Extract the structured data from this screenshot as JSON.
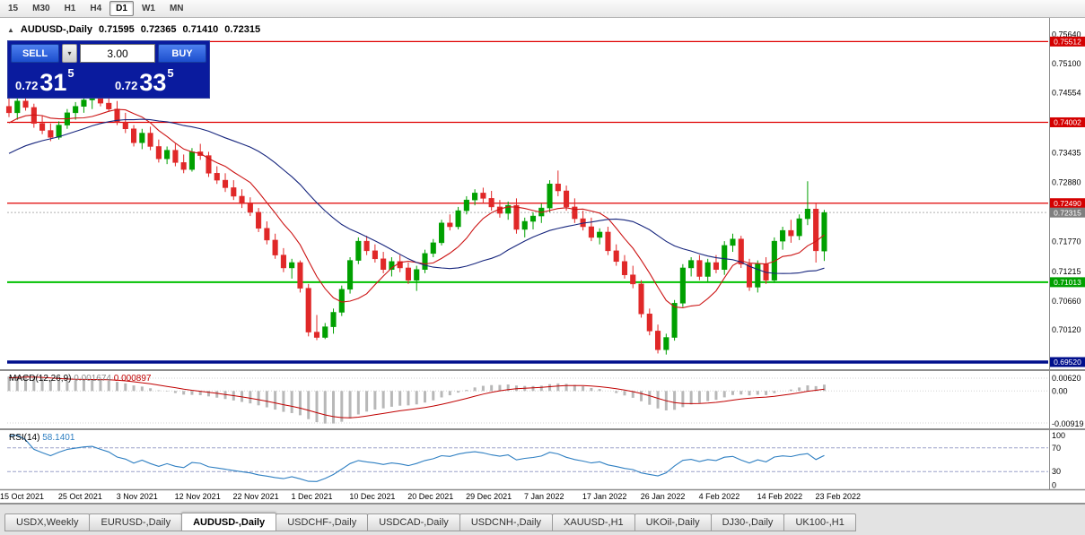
{
  "toolbar": {
    "timeframes": [
      {
        "label": "15",
        "active": false
      },
      {
        "label": "M30",
        "active": false
      },
      {
        "label": "H1",
        "active": false
      },
      {
        "label": "H4",
        "active": false
      },
      {
        "label": "D1",
        "active": true
      },
      {
        "label": "W1",
        "active": false
      },
      {
        "label": "MN",
        "active": false
      }
    ]
  },
  "chart": {
    "header": {
      "collapse_icon": "▲",
      "symbol": "AUDUSD-,Daily",
      "open": "0.71595",
      "high": "0.72365",
      "low": "0.71410",
      "close": "0.72315"
    },
    "trade_panel": {
      "sell_label": "SELL",
      "buy_label": "BUY",
      "lot": "3.00",
      "dropdown_icon": "▾",
      "sell_price": {
        "prefix": "0.72",
        "big": "31",
        "pip": "5"
      },
      "buy_price": {
        "prefix": "0.72",
        "big": "33",
        "pip": "5"
      }
    }
  },
  "chart_data": {
    "type": "candlestick",
    "symbol": "AUDUSD-,Daily",
    "current_bid": "0.72315",
    "price_range": {
      "top": 0.7592,
      "bottom": 0.69386
    },
    "colors": {
      "bull": "#00a000",
      "bear": "#e02828",
      "background": "#ffffff"
    },
    "candles": [
      [
        0.743,
        0.7448,
        0.741,
        0.7418
      ],
      [
        0.7418,
        0.7445,
        0.7405,
        0.744
      ],
      [
        0.744,
        0.7452,
        0.7422,
        0.7428
      ],
      [
        0.7428,
        0.7435,
        0.739,
        0.7398
      ],
      [
        0.7398,
        0.7412,
        0.7378,
        0.7385
      ],
      [
        0.7385,
        0.7398,
        0.7365,
        0.7372
      ],
      [
        0.7372,
        0.7402,
        0.7368,
        0.7395
      ],
      [
        0.7395,
        0.7425,
        0.7388,
        0.7418
      ],
      [
        0.7418,
        0.7438,
        0.7405,
        0.743
      ],
      [
        0.743,
        0.7448,
        0.7418,
        0.7442
      ],
      [
        0.7442,
        0.7455,
        0.7425,
        0.7448
      ],
      [
        0.7448,
        0.7456,
        0.743,
        0.7436
      ],
      [
        0.7436,
        0.7455,
        0.742,
        0.7425
      ],
      [
        0.7425,
        0.744,
        0.7395,
        0.74
      ],
      [
        0.74,
        0.7418,
        0.738,
        0.7388
      ],
      [
        0.7388,
        0.7395,
        0.7355,
        0.7362
      ],
      [
        0.7362,
        0.7388,
        0.735,
        0.738
      ],
      [
        0.738,
        0.7392,
        0.7348,
        0.7355
      ],
      [
        0.7355,
        0.7368,
        0.7325,
        0.7332
      ],
      [
        0.7332,
        0.7355,
        0.7322,
        0.7348
      ],
      [
        0.7348,
        0.736,
        0.7318,
        0.7325
      ],
      [
        0.7325,
        0.734,
        0.7305,
        0.7312
      ],
      [
        0.7312,
        0.7352,
        0.7308,
        0.7345
      ],
      [
        0.7345,
        0.736,
        0.733,
        0.7338
      ],
      [
        0.7338,
        0.7345,
        0.7298,
        0.7305
      ],
      [
        0.7305,
        0.7318,
        0.7285,
        0.7292
      ],
      [
        0.7292,
        0.7305,
        0.727,
        0.7278
      ],
      [
        0.7278,
        0.7292,
        0.7255,
        0.7262
      ],
      [
        0.7262,
        0.7275,
        0.724,
        0.7248
      ],
      [
        0.7248,
        0.726,
        0.7225,
        0.7232
      ],
      [
        0.7232,
        0.724,
        0.7195,
        0.7202
      ],
      [
        0.7202,
        0.7215,
        0.7172,
        0.718
      ],
      [
        0.718,
        0.7192,
        0.7145,
        0.7152
      ],
      [
        0.7152,
        0.7165,
        0.712,
        0.7128
      ],
      [
        0.7128,
        0.7145,
        0.7108,
        0.7138
      ],
      [
        0.7138,
        0.7142,
        0.7082,
        0.709
      ],
      [
        0.709,
        0.7098,
        0.7,
        0.7008
      ],
      [
        0.7008,
        0.704,
        0.6993,
        0.6998
      ],
      [
        0.6998,
        0.7025,
        0.6995,
        0.7018
      ],
      [
        0.7018,
        0.7052,
        0.7005,
        0.7045
      ],
      [
        0.7045,
        0.7095,
        0.7038,
        0.7088
      ],
      [
        0.7088,
        0.7148,
        0.708,
        0.7142
      ],
      [
        0.7142,
        0.7185,
        0.7135,
        0.7178
      ],
      [
        0.7178,
        0.7188,
        0.7152,
        0.716
      ],
      [
        0.716,
        0.7172,
        0.7138,
        0.7145
      ],
      [
        0.7145,
        0.7158,
        0.7118,
        0.7125
      ],
      [
        0.7125,
        0.7148,
        0.7112,
        0.714
      ],
      [
        0.714,
        0.7152,
        0.712,
        0.7128
      ],
      [
        0.7128,
        0.7138,
        0.7098,
        0.7105
      ],
      [
        0.7105,
        0.7132,
        0.7085,
        0.7125
      ],
      [
        0.7125,
        0.7162,
        0.7118,
        0.7155
      ],
      [
        0.7155,
        0.7182,
        0.7148,
        0.7175
      ],
      [
        0.7175,
        0.7218,
        0.717,
        0.7212
      ],
      [
        0.7212,
        0.7228,
        0.7198,
        0.7205
      ],
      [
        0.7205,
        0.7242,
        0.72,
        0.7235
      ],
      [
        0.7235,
        0.7262,
        0.7228,
        0.7255
      ],
      [
        0.7255,
        0.7275,
        0.7245,
        0.7268
      ],
      [
        0.7268,
        0.7278,
        0.7248,
        0.7258
      ],
      [
        0.7258,
        0.7272,
        0.7235,
        0.7242
      ],
      [
        0.7242,
        0.7255,
        0.7222,
        0.723
      ],
      [
        0.723,
        0.7252,
        0.7218,
        0.7245
      ],
      [
        0.7245,
        0.7258,
        0.7192,
        0.72
      ],
      [
        0.72,
        0.7222,
        0.7185,
        0.7215
      ],
      [
        0.7215,
        0.7232,
        0.72,
        0.7225
      ],
      [
        0.7225,
        0.7248,
        0.7212,
        0.724
      ],
      [
        0.724,
        0.7292,
        0.7232,
        0.7285
      ],
      [
        0.7285,
        0.731,
        0.7262,
        0.7272
      ],
      [
        0.7272,
        0.7282,
        0.7235,
        0.7242
      ],
      [
        0.7242,
        0.7258,
        0.7212,
        0.722
      ],
      [
        0.722,
        0.7235,
        0.7198,
        0.7205
      ],
      [
        0.7205,
        0.7222,
        0.7178,
        0.7185
      ],
      [
        0.7185,
        0.7202,
        0.7172,
        0.7195
      ],
      [
        0.7195,
        0.7205,
        0.7152,
        0.716
      ],
      [
        0.716,
        0.7172,
        0.7132,
        0.714
      ],
      [
        0.714,
        0.7152,
        0.7108,
        0.7115
      ],
      [
        0.7115,
        0.7132,
        0.709,
        0.7098
      ],
      [
        0.7098,
        0.7105,
        0.7035,
        0.7042
      ],
      [
        0.7042,
        0.7052,
        0.7002,
        0.701
      ],
      [
        0.701,
        0.7022,
        0.6968,
        0.6975
      ],
      [
        0.6975,
        0.7005,
        0.6966,
        0.6998
      ],
      [
        0.6998,
        0.7068,
        0.6992,
        0.7062
      ],
      [
        0.7062,
        0.7135,
        0.7055,
        0.7128
      ],
      [
        0.7128,
        0.7148,
        0.7112,
        0.7142
      ],
      [
        0.7142,
        0.7152,
        0.7105,
        0.7112
      ],
      [
        0.7112,
        0.7145,
        0.7102,
        0.7138
      ],
      [
        0.7138,
        0.7152,
        0.7118,
        0.7125
      ],
      [
        0.7125,
        0.7178,
        0.7115,
        0.717
      ],
      [
        0.717,
        0.7192,
        0.7158,
        0.7182
      ],
      [
        0.7182,
        0.7188,
        0.7128,
        0.7135
      ],
      [
        0.7135,
        0.7145,
        0.7085,
        0.7092
      ],
      [
        0.7092,
        0.7142,
        0.7082,
        0.7135
      ],
      [
        0.7135,
        0.7148,
        0.7098,
        0.7105
      ],
      [
        0.7105,
        0.7185,
        0.71,
        0.7178
      ],
      [
        0.7178,
        0.7205,
        0.7162,
        0.7198
      ],
      [
        0.7198,
        0.7218,
        0.7175,
        0.7188
      ],
      [
        0.7188,
        0.7228,
        0.718,
        0.722
      ],
      [
        0.722,
        0.729,
        0.7208,
        0.7238
      ],
      [
        0.7238,
        0.7248,
        0.7138,
        0.716
      ],
      [
        0.71595,
        0.72365,
        0.7141,
        0.72315
      ]
    ],
    "x_labels": [
      {
        "text": "15 Oct 2021",
        "i": 0
      },
      {
        "text": "25 Oct 2021",
        "i": 7
      },
      {
        "text": "3 Nov 2021",
        "i": 14
      },
      {
        "text": "12 Nov 2021",
        "i": 21
      },
      {
        "text": "22 Nov 2021",
        "i": 28
      },
      {
        "text": "1 Dec 2021",
        "i": 35
      },
      {
        "text": "10 Dec 2021",
        "i": 42
      },
      {
        "text": "20 Dec 2021",
        "i": 49
      },
      {
        "text": "29 Dec 2021",
        "i": 56
      },
      {
        "text": "7 Jan 2022",
        "i": 63
      },
      {
        "text": "17 Jan 2022",
        "i": 70
      },
      {
        "text": "26 Jan 2022",
        "i": 77
      },
      {
        "text": "4 Feb 2022",
        "i": 84
      },
      {
        "text": "14 Feb 2022",
        "i": 91
      },
      {
        "text": "23 Feb 2022",
        "i": 98
      }
    ],
    "y_axis": {
      "ticks": [
        "0.75640",
        "0.75100",
        "0.74554",
        "0.73435",
        "0.72880",
        "0.71770",
        "0.71215",
        "0.70660",
        "0.70120"
      ],
      "badges": [
        {
          "value": 0.75512,
          "label": "0.75512",
          "bg": "#d40000"
        },
        {
          "value": 0.74002,
          "label": "0.74002",
          "bg": "#d40000"
        },
        {
          "value": 0.7249,
          "label": "0.72490",
          "bg": "#d40000"
        },
        {
          "value": 0.72315,
          "label": "0.72315",
          "bg": "#7f7f7f"
        },
        {
          "value": 0.71013,
          "label": "0.71013",
          "bg": "#00a000"
        },
        {
          "value": 0.6952,
          "label": "0.69520",
          "bg": "#000f8c"
        }
      ]
    },
    "hlines": [
      {
        "value": 0.75512,
        "label": "0.75512",
        "color": "#e00000",
        "width": 1.3
      },
      {
        "value": 0.74002,
        "label": "0.74002",
        "color": "#e00000",
        "width": 1.3
      },
      {
        "value": 0.7249,
        "label": "0.72490",
        "color": "#e00000",
        "width": 1.3
      },
      {
        "value": 0.71013,
        "label": "0.71013",
        "color": "#00c000",
        "width": 2
      },
      {
        "value": 0.6952,
        "label": "0.69520",
        "color": "#000f8c",
        "width": 3.5
      }
    ],
    "bid": {
      "value": 0.72315,
      "label": "0.72315",
      "color": "#b0b0b0"
    },
    "indicators": {
      "ma_fast": {
        "period": 8,
        "color": "#cc1414"
      },
      "ma_slow": {
        "period": 24,
        "color": "#16257d"
      },
      "macd": {
        "label": "MACD(12,26,9)",
        "fast": 12,
        "slow": 26,
        "signal": 9,
        "current_macd": "0.001674",
        "current_signal": "0.000897",
        "axis_labels": [
          "0.00620",
          "0.00",
          "-0.00919"
        ],
        "hist_color": "#b8b8b8",
        "signal_color": "#c00000"
      },
      "rsi": {
        "label": "RSI(14)",
        "period": 14,
        "current": "58.1401",
        "axis_labels": [
          "100",
          "70",
          "30",
          "0"
        ],
        "levels": [
          70,
          30
        ],
        "color": "#2e7fc2"
      }
    }
  },
  "tabs": {
    "items": [
      {
        "label": "USDX,Weekly",
        "active": false
      },
      {
        "label": "EURUSD-,Daily",
        "active": false
      },
      {
        "label": "AUDUSD-,Daily",
        "active": true
      },
      {
        "label": "USDCHF-,Daily",
        "active": false
      },
      {
        "label": "USDCAD-,Daily",
        "active": false
      },
      {
        "label": "USDCNH-,Daily",
        "active": false
      },
      {
        "label": "XAUUSD-,H1",
        "active": false
      },
      {
        "label": "UKOil-,Daily",
        "active": false
      },
      {
        "label": "DJ30-,Daily",
        "active": false
      },
      {
        "label": "UK100-,H1",
        "active": false
      }
    ]
  }
}
